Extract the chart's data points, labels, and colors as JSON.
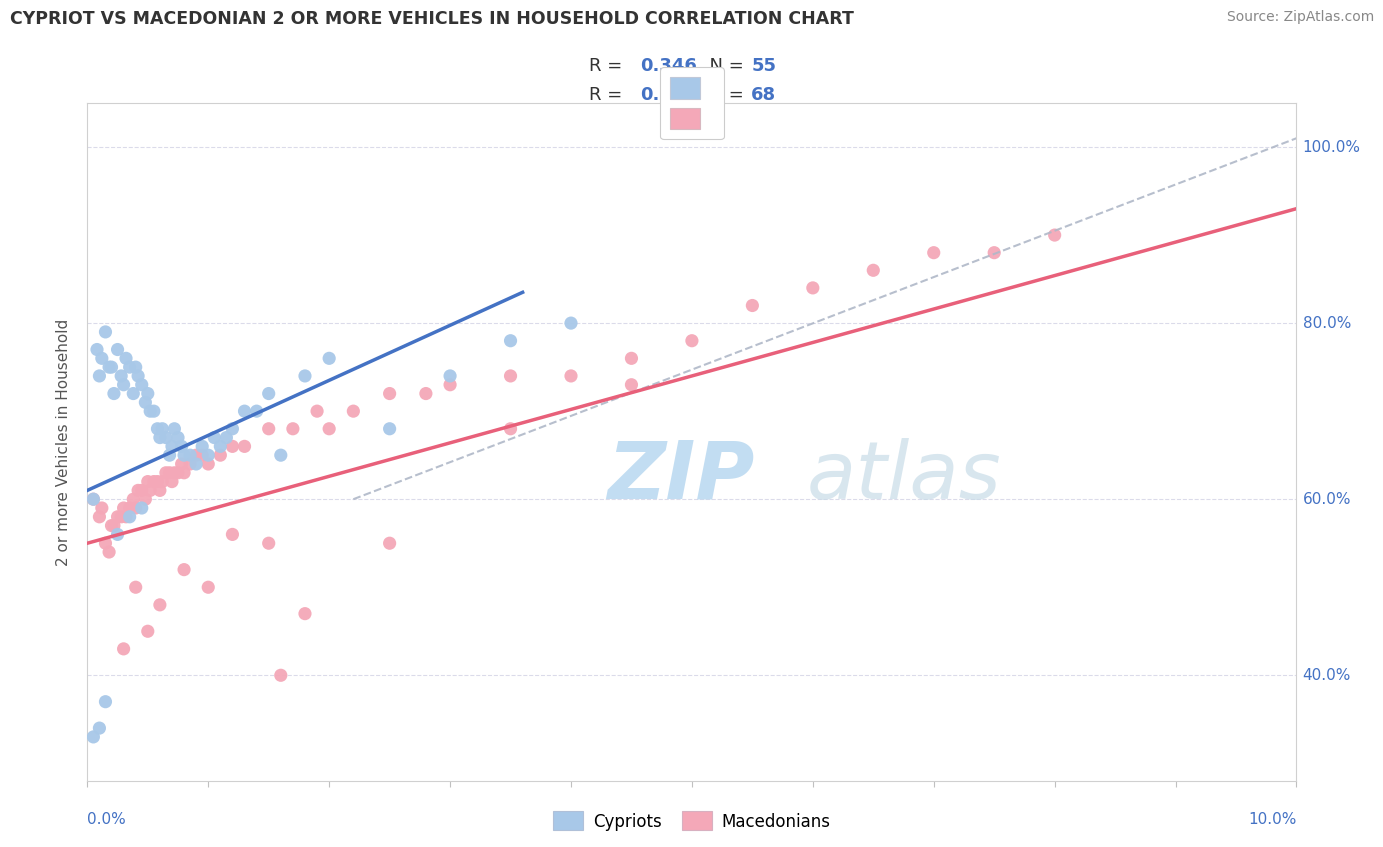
{
  "title": "CYPRIOT VS MACEDONIAN 2 OR MORE VEHICLES IN HOUSEHOLD CORRELATION CHART",
  "source": "Source: ZipAtlas.com",
  "ylabel": "2 or more Vehicles in Household",
  "cypriot_color": "#a8c8e8",
  "macedonian_color": "#f4a8b8",
  "cypriot_line_color": "#4472c4",
  "macedonian_line_color": "#e8607a",
  "trend_line_color": "#b0b8c8",
  "watermark_color": "#cce0f0",
  "R_cypriot": 0.346,
  "N_cypriot": 55,
  "R_macedonian": 0.559,
  "N_macedonian": 68,
  "xlim": [
    0.0,
    10.0
  ],
  "ylim": [
    28.0,
    105.0
  ],
  "ytick_vals": [
    40.0,
    60.0,
    80.0,
    100.0
  ],
  "ytick_labels": [
    "40.0%",
    "60.0%",
    "80.0%",
    "100.0%"
  ],
  "cypriot_x": [
    0.05,
    0.08,
    0.1,
    0.12,
    0.15,
    0.18,
    0.2,
    0.22,
    0.25,
    0.28,
    0.3,
    0.32,
    0.35,
    0.38,
    0.4,
    0.42,
    0.45,
    0.48,
    0.5,
    0.52,
    0.55,
    0.58,
    0.6,
    0.62,
    0.65,
    0.68,
    0.7,
    0.72,
    0.75,
    0.78,
    0.8,
    0.85,
    0.9,
    0.95,
    1.0,
    1.05,
    1.1,
    1.15,
    1.2,
    1.3,
    1.4,
    1.5,
    1.6,
    1.8,
    2.0,
    2.5,
    3.0,
    3.5,
    4.0,
    0.15,
    0.25,
    0.35,
    0.45,
    0.05,
    0.1
  ],
  "cypriot_y": [
    60,
    77,
    74,
    76,
    79,
    75,
    75,
    72,
    77,
    74,
    73,
    76,
    75,
    72,
    75,
    74,
    73,
    71,
    72,
    70,
    70,
    68,
    67,
    68,
    67,
    65,
    66,
    68,
    67,
    66,
    65,
    65,
    64,
    66,
    65,
    67,
    66,
    67,
    68,
    70,
    70,
    72,
    65,
    74,
    76,
    68,
    74,
    78,
    80,
    37,
    56,
    58,
    59,
    33,
    34
  ],
  "macedonian_x": [
    0.05,
    0.1,
    0.12,
    0.15,
    0.18,
    0.2,
    0.22,
    0.25,
    0.28,
    0.3,
    0.32,
    0.35,
    0.38,
    0.4,
    0.42,
    0.45,
    0.48,
    0.5,
    0.52,
    0.55,
    0.58,
    0.6,
    0.62,
    0.65,
    0.68,
    0.7,
    0.72,
    0.75,
    0.78,
    0.8,
    0.85,
    0.9,
    0.95,
    1.0,
    1.1,
    1.2,
    1.3,
    1.5,
    1.7,
    1.9,
    2.0,
    2.2,
    2.5,
    2.8,
    3.0,
    3.5,
    4.0,
    4.5,
    5.0,
    5.5,
    6.0,
    6.5,
    7.0,
    7.5,
    8.0,
    1.5,
    2.5,
    3.5,
    4.5,
    1.8,
    0.3,
    0.5,
    1.0,
    0.6,
    0.4,
    0.8,
    1.2,
    1.6
  ],
  "macedonian_y": [
    60,
    58,
    59,
    55,
    54,
    57,
    57,
    58,
    58,
    59,
    58,
    59,
    60,
    59,
    61,
    61,
    60,
    62,
    61,
    62,
    62,
    61,
    62,
    63,
    63,
    62,
    63,
    63,
    64,
    63,
    64,
    65,
    65,
    64,
    65,
    66,
    66,
    68,
    68,
    70,
    68,
    70,
    72,
    72,
    73,
    74,
    74,
    76,
    78,
    82,
    84,
    86,
    88,
    88,
    90,
    55,
    55,
    68,
    73,
    47,
    43,
    45,
    50,
    48,
    50,
    52,
    56,
    40
  ],
  "cyp_line_x": [
    0.0,
    3.6
  ],
  "cyp_line_y": [
    61.0,
    83.5
  ],
  "mac_line_x": [
    0.0,
    10.0
  ],
  "mac_line_y": [
    55.0,
    93.0
  ],
  "dash_line_x": [
    2.2,
    10.0
  ],
  "dash_line_y": [
    60.0,
    101.0
  ]
}
